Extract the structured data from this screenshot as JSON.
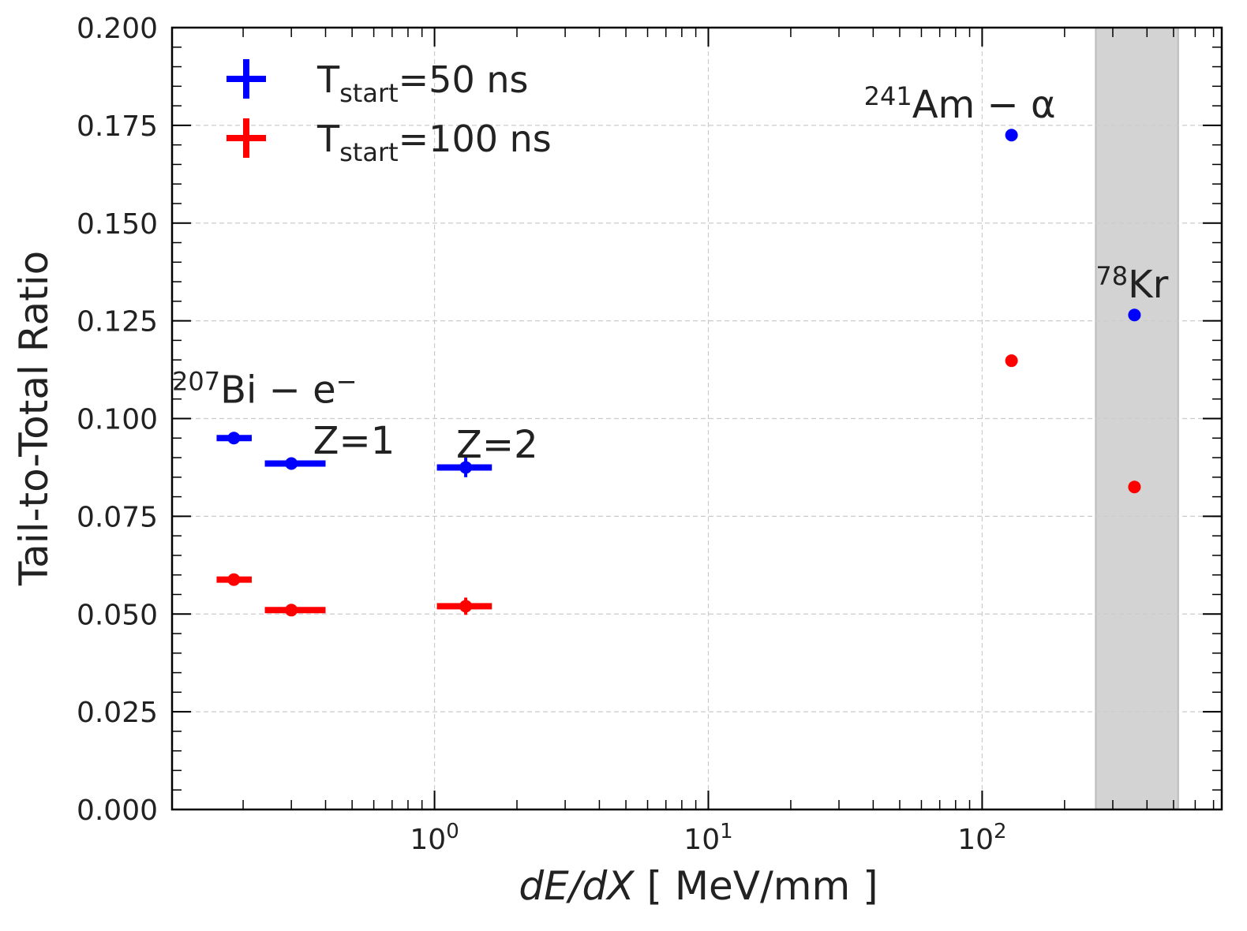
{
  "chart_data": {
    "type": "scatter",
    "title": "",
    "xlabel": {
      "italic": "dE/dX",
      "unit": " [ MeV/mm ]"
    },
    "ylabel": "Tail-to-Total Ratio",
    "xscale": "log",
    "xlim": [
      0.11,
      750
    ],
    "ylim": [
      0.0,
      0.2
    ],
    "grid": true,
    "x_tick_labels": [
      {
        "value": 1,
        "base": "10",
        "exp": "0"
      },
      {
        "value": 10,
        "base": "10",
        "exp": "1"
      },
      {
        "value": 100,
        "base": "10",
        "exp": "2"
      }
    ],
    "y_ticks": [
      {
        "value": 0.0,
        "label": "0.000"
      },
      {
        "value": 0.025,
        "label": "0.025"
      },
      {
        "value": 0.05,
        "label": "0.050"
      },
      {
        "value": 0.075,
        "label": "0.075"
      },
      {
        "value": 0.1,
        "label": "0.100"
      },
      {
        "value": 0.125,
        "label": "0.125"
      },
      {
        "value": 0.15,
        "label": "0.150"
      },
      {
        "value": 0.175,
        "label": "0.175"
      },
      {
        "value": 0.2,
        "label": "0.200"
      }
    ],
    "shaded_band": {
      "x_range": [
        260,
        520
      ],
      "color": "#d3d3d3"
    },
    "legend": {
      "position": "top-left",
      "entries": [
        {
          "series": 0,
          "base": "T",
          "sub": "start",
          "suffix": "=50 ns"
        },
        {
          "series": 1,
          "base": "T",
          "sub": "start",
          "suffix": "=100 ns"
        }
      ]
    },
    "series": [
      {
        "name": "Tstart=50 ns",
        "color": "#0000ff",
        "points": [
          {
            "x": 0.185,
            "y": 0.095,
            "xerr": [
              0.025,
              0.03
            ],
            "yerr": 0.0008
          },
          {
            "x": 0.3,
            "y": 0.0885,
            "xerr": [
              0.06,
              0.1
            ],
            "yerr": 0.0012
          },
          {
            "x": 1.3,
            "y": 0.0875,
            "xerr": [
              0.28,
              0.32
            ],
            "yerr": 0.0025
          },
          {
            "x": 128,
            "y": 0.1725,
            "xerr": [
              0,
              0
            ],
            "yerr": 0.0
          },
          {
            "x": 360,
            "y": 0.1265,
            "xerr": [
              0,
              0
            ],
            "yerr": 0.0
          }
        ]
      },
      {
        "name": "Tstart=100 ns",
        "color": "#ff0000",
        "points": [
          {
            "x": 0.185,
            "y": 0.0588,
            "xerr": [
              0.025,
              0.03
            ],
            "yerr": 0.0008
          },
          {
            "x": 0.3,
            "y": 0.051,
            "xerr": [
              0.06,
              0.1
            ],
            "yerr": 0.0012
          },
          {
            "x": 1.3,
            "y": 0.052,
            "xerr": [
              0.28,
              0.32
            ],
            "yerr": 0.0022
          },
          {
            "x": 128,
            "y": 0.1148,
            "xerr": [
              0,
              0
            ],
            "yerr": 0.0
          },
          {
            "x": 360,
            "y": 0.0825,
            "xerr": [
              0,
              0
            ],
            "yerr": 0.0
          }
        ]
      }
    ],
    "annotations": [
      {
        "id": "bi",
        "sup": "207",
        "text": "Bi − e",
        "suffix_sup": "−",
        "x": 0.11,
        "y": 0.104
      },
      {
        "id": "z1",
        "sup": "",
        "text": "Z=1",
        "suffix_sup": "",
        "x": 0.36,
        "y": 0.091
      },
      {
        "id": "z2",
        "sup": "",
        "text": "Z=2",
        "suffix_sup": "",
        "x": 1.2,
        "y": 0.09
      },
      {
        "id": "am",
        "sup": "241",
        "text": "Am − α",
        "suffix_sup": "",
        "x": 37,
        "y": 0.177
      },
      {
        "id": "kr",
        "sup": "78",
        "text": "Kr",
        "suffix_sup": "",
        "x": 260,
        "y": 0.131
      }
    ]
  }
}
